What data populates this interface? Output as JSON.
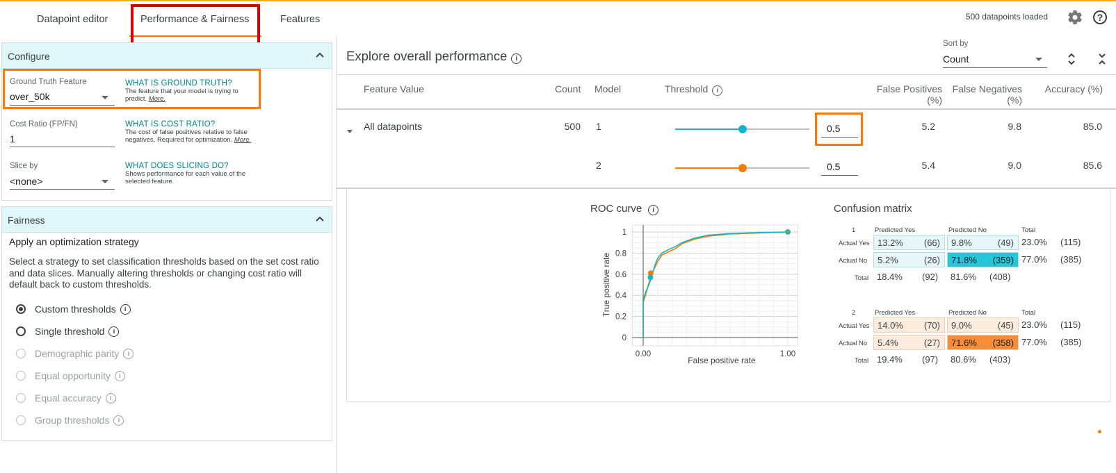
{
  "header": {
    "tabs": [
      "Datapoint editor",
      "Performance & Fairness",
      "Features"
    ],
    "active_tab": "Performance & Fairness",
    "status": "500 datapoints loaded",
    "settings_icon": "gear-icon",
    "help_icon": "help-icon",
    "accent": "#ff6f00"
  },
  "configure": {
    "title": "Configure",
    "ground_truth": {
      "label": "Ground Truth Feature",
      "value": "over_50k",
      "help_title": "WHAT IS GROUND TRUTH?",
      "help_text": "The feature that your model is trying to predict.",
      "more": "More."
    },
    "cost_ratio": {
      "label": "Cost Ratio (FP/FN)",
      "value": "1",
      "help_title": "WHAT IS COST RATIO?",
      "help_text": "The cost of false positives relative to false negatives. Required for optimization.",
      "more": "More."
    },
    "slice_by": {
      "label": "Slice by",
      "value": "<none>",
      "help_title": "WHAT DOES SLICING DO?",
      "help_text": "Shows performance for each value of the selected feature."
    }
  },
  "fairness": {
    "title": "Fairness",
    "subtitle": "Apply an optimization strategy",
    "description": "Select a strategy to set classification thresholds based on the set cost ratio and data slices. Manually altering thresholds or changing cost ratio will default back to custom thresholds.",
    "options": [
      {
        "label": "Custom thresholds",
        "selected": true,
        "enabled": true
      },
      {
        "label": "Single threshold",
        "selected": false,
        "enabled": true
      },
      {
        "label": "Demographic parity",
        "selected": false,
        "enabled": false
      },
      {
        "label": "Equal opportunity",
        "selected": false,
        "enabled": false
      },
      {
        "label": "Equal accuracy",
        "selected": false,
        "enabled": false
      },
      {
        "label": "Group thresholds",
        "selected": false,
        "enabled": false
      }
    ]
  },
  "explore": {
    "title": "Explore overall performance",
    "sort_label": "Sort by",
    "sort_value": "Count",
    "columns": [
      "Feature Value",
      "Count",
      "Model",
      "Threshold",
      "False Positives (%)",
      "False Negatives (%)",
      "Accuracy (%)"
    ],
    "row": {
      "feature_value": "All datapoints",
      "count": "500",
      "models": [
        {
          "model": "1",
          "threshold": "0.5",
          "threshold_level": 0.5,
          "color": "#12b5cb",
          "fp": "5.2",
          "fn": "9.8",
          "acc": "85.0"
        },
        {
          "model": "2",
          "threshold": "0.5",
          "threshold_level": 0.5,
          "color": "#f57c00",
          "fp": "5.4",
          "fn": "9.0",
          "acc": "85.6"
        }
      ]
    }
  },
  "roc": {
    "title": "ROC curve",
    "xlabel": "False positive rate",
    "ylabel": "True positive rate",
    "x_ticks": [
      "0.00",
      "1.00"
    ],
    "y_ticks": [
      "1",
      "0.8",
      "0.6",
      "0.4",
      "0.2",
      "0"
    ]
  },
  "confusion": {
    "title": "Confusion matrix",
    "headers": [
      "Predicted Yes",
      "Predicted No",
      "Total"
    ],
    "row_labels": [
      "Actual Yes",
      "Actual No",
      "Total"
    ],
    "models": [
      {
        "id": "1",
        "rows": [
          [
            [
              "13.2%",
              "(66)"
            ],
            [
              "9.8%",
              "(49)"
            ],
            [
              "23.0%",
              "(115)"
            ]
          ],
          [
            [
              "5.2%",
              "(26)"
            ],
            [
              "71.8%",
              "(359)"
            ],
            [
              "77.0%",
              "(385)"
            ]
          ],
          [
            [
              "18.4%",
              "(92)"
            ],
            [
              "81.6%",
              "(408)"
            ],
            [
              "",
              ""
            ]
          ]
        ]
      },
      {
        "id": "2",
        "rows": [
          [
            [
              "14.0%",
              "(70)"
            ],
            [
              "9.0%",
              "(45)"
            ],
            [
              "23.0%",
              "(115)"
            ]
          ],
          [
            [
              "5.4%",
              "(27)"
            ],
            [
              "71.6%",
              "(358)"
            ],
            [
              "77.0%",
              "(385)"
            ]
          ],
          [
            [
              "19.4%",
              "(97)"
            ],
            [
              "80.6%",
              "(403)"
            ],
            [
              "",
              ""
            ]
          ]
        ]
      }
    ]
  },
  "chart_data": {
    "type": "line",
    "title": "ROC curve",
    "xlabel": "False positive rate",
    "ylabel": "True positive rate",
    "xlim": [
      0,
      1
    ],
    "ylim": [
      0,
      1
    ],
    "grid": true,
    "series": [
      {
        "color": "#f57c00",
        "points": [
          [
            0,
            0
          ],
          [
            0,
            0.33
          ],
          [
            0.02,
            0.42
          ],
          [
            0.04,
            0.52
          ],
          [
            0.06,
            0.61
          ],
          [
            0.08,
            0.66
          ],
          [
            0.1,
            0.72
          ],
          [
            0.13,
            0.78
          ],
          [
            0.17,
            0.81
          ],
          [
            0.22,
            0.84
          ],
          [
            0.27,
            0.89
          ],
          [
            0.35,
            0.93
          ],
          [
            0.45,
            0.96
          ],
          [
            0.6,
            0.98
          ],
          [
            0.8,
            0.99
          ],
          [
            1,
            1
          ]
        ],
        "marker": [
          0.052,
          0.61
        ]
      },
      {
        "color": "#12b5cb",
        "points": [
          [
            0,
            0
          ],
          [
            0,
            0.36
          ],
          [
            0.02,
            0.44
          ],
          [
            0.04,
            0.5
          ],
          [
            0.06,
            0.58
          ],
          [
            0.08,
            0.68
          ],
          [
            0.1,
            0.75
          ],
          [
            0.13,
            0.8
          ],
          [
            0.17,
            0.83
          ],
          [
            0.22,
            0.86
          ],
          [
            0.27,
            0.9
          ],
          [
            0.35,
            0.94
          ],
          [
            0.45,
            0.97
          ],
          [
            0.6,
            0.985
          ],
          [
            0.8,
            0.995
          ],
          [
            1,
            1
          ]
        ],
        "marker": [
          0.05,
          0.57
        ]
      }
    ]
  }
}
